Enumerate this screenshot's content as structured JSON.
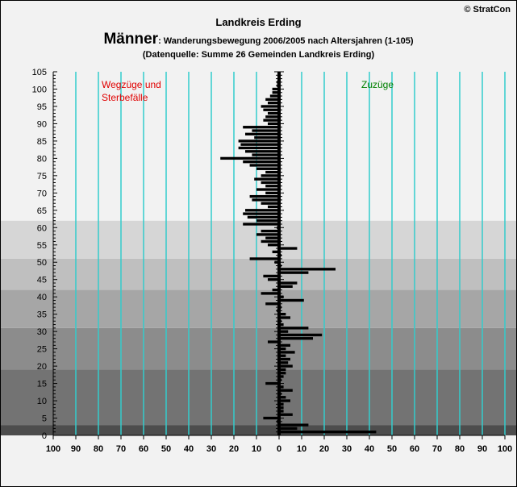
{
  "header": {
    "copyright": "© StratCon",
    "title": "Landkreis Erding",
    "subtitle_main": "Männer",
    "subtitle_rest": ": Wanderungsbewegung 2006/2005 nach Altersjahren (1-105)",
    "source": "(Datenquelle: Summe 26 Gemeinden Landkreis Erding)"
  },
  "colors": {
    "left_label": "#e00000",
    "right_label": "#008000",
    "gridline": "#33cccc",
    "bar": "#000000",
    "bands": [
      "#4d4d4d",
      "#737373",
      "#8c8c8c",
      "#a6a6a6",
      "#bfbfbf",
      "#d6d6d6",
      "#f2f2f2"
    ]
  },
  "chart_data": {
    "type": "bar",
    "orientation": "horizontal",
    "annotations": {
      "left": [
        "Wegzüge und",
        "Sterbefälle"
      ],
      "right": "Zuzüge"
    },
    "x_range": [
      -100,
      100
    ],
    "x_ticks": [
      -100,
      -90,
      -80,
      -70,
      -60,
      -50,
      -40,
      -30,
      -20,
      -10,
      0,
      10,
      20,
      30,
      40,
      50,
      60,
      70,
      80,
      90,
      100
    ],
    "x_tick_labels": [
      "100",
      "90",
      "80",
      "70",
      "60",
      "50",
      "40",
      "30",
      "20",
      "10",
      "0",
      "10",
      "20",
      "30",
      "40",
      "50",
      "60",
      "70",
      "80",
      "90",
      "100"
    ],
    "y_range": [
      0,
      105
    ],
    "y_ticks": [
      0,
      5,
      10,
      15,
      20,
      25,
      30,
      35,
      40,
      45,
      50,
      55,
      60,
      65,
      70,
      75,
      80,
      85,
      90,
      95,
      100,
      105
    ],
    "age_bands": [
      [
        0,
        3
      ],
      [
        3,
        19
      ],
      [
        19,
        31
      ],
      [
        31,
        42
      ],
      [
        42,
        51
      ],
      [
        51,
        62
      ],
      [
        62,
        74
      ],
      [
        74,
        91
      ],
      [
        91,
        105
      ]
    ],
    "series": [
      {
        "ages": [
          1,
          2,
          3,
          4,
          5,
          6,
          7,
          8,
          9,
          10,
          11,
          12,
          13,
          14,
          15,
          16,
          17,
          18,
          19,
          20,
          21,
          22,
          23,
          24,
          25,
          26,
          27,
          28,
          29,
          30,
          31,
          32,
          33,
          34,
          35,
          36,
          37,
          38,
          39,
          40,
          41,
          42,
          43,
          44,
          45,
          46,
          47,
          48,
          49,
          50,
          51,
          52,
          53,
          54,
          55,
          56,
          57,
          58,
          59,
          60,
          61,
          62,
          63,
          64,
          65,
          66,
          67,
          68,
          69,
          70,
          71,
          72,
          73,
          74,
          75,
          76,
          77,
          78,
          79,
          80,
          81,
          82,
          83,
          84,
          85,
          86,
          87,
          88,
          89,
          90,
          91,
          92,
          93,
          94,
          95,
          96,
          97,
          98,
          99,
          100,
          101,
          102,
          103,
          104,
          105
        ],
        "values": [
          43,
          8,
          13,
          -1,
          -7,
          6,
          2,
          2,
          2,
          5,
          3,
          1,
          6,
          2,
          -6,
          1,
          2,
          3,
          3,
          6,
          4,
          5,
          3,
          7,
          3,
          5,
          -5,
          15,
          19,
          4,
          13,
          2,
          1,
          5,
          3,
          -1,
          1,
          -6,
          11,
          2,
          -8,
          -3,
          6,
          8,
          -5,
          -7,
          13,
          25,
          1,
          -2,
          -13,
          1,
          -3,
          8,
          -5,
          -8,
          -6,
          -10,
          -8,
          -1,
          -16,
          -10,
          -14,
          -16,
          -15,
          -5,
          -8,
          -12,
          -13,
          -6,
          -10,
          -6,
          -8,
          -11,
          -8,
          -6,
          -10,
          -13,
          -16,
          -26,
          -12,
          -15,
          -18,
          -17,
          -18,
          -11,
          -15,
          -12,
          -16,
          -5,
          -7,
          -6,
          -5,
          -7,
          -8,
          -5,
          -6,
          -4,
          -3,
          -3,
          -1,
          -1,
          0,
          0,
          0
        ]
      }
    ]
  }
}
